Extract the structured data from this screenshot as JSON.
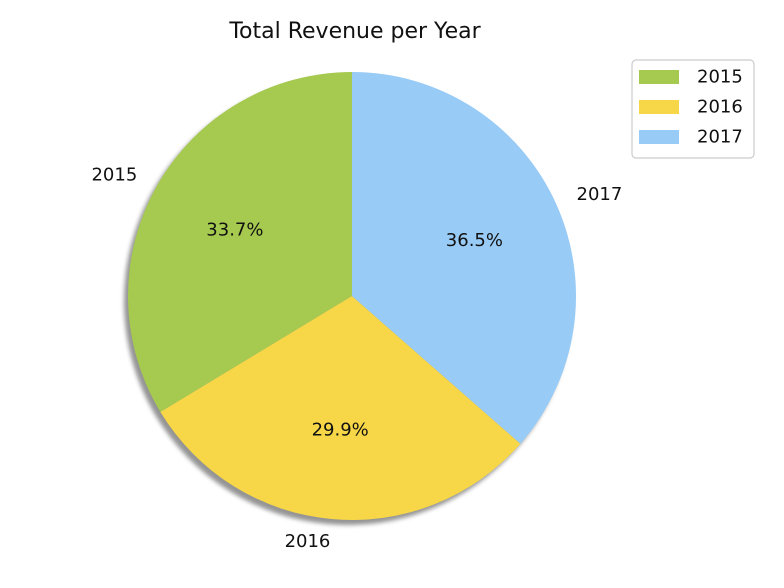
{
  "chart_data": {
    "type": "pie",
    "title": "Total Revenue per Year",
    "start_angle_deg": 90,
    "direction": "counterclockwise",
    "shadow": true,
    "legend_position": "upper-right",
    "slices": [
      {
        "label": "2015",
        "value": 33.7,
        "pct_label": "33.7%",
        "color": "#a6c94f"
      },
      {
        "label": "2016",
        "value": 29.9,
        "pct_label": "29.9%",
        "color": "#f7d747"
      },
      {
        "label": "2017",
        "value": 36.5,
        "pct_label": "36.5%",
        "color": "#98cbf5"
      }
    ]
  }
}
